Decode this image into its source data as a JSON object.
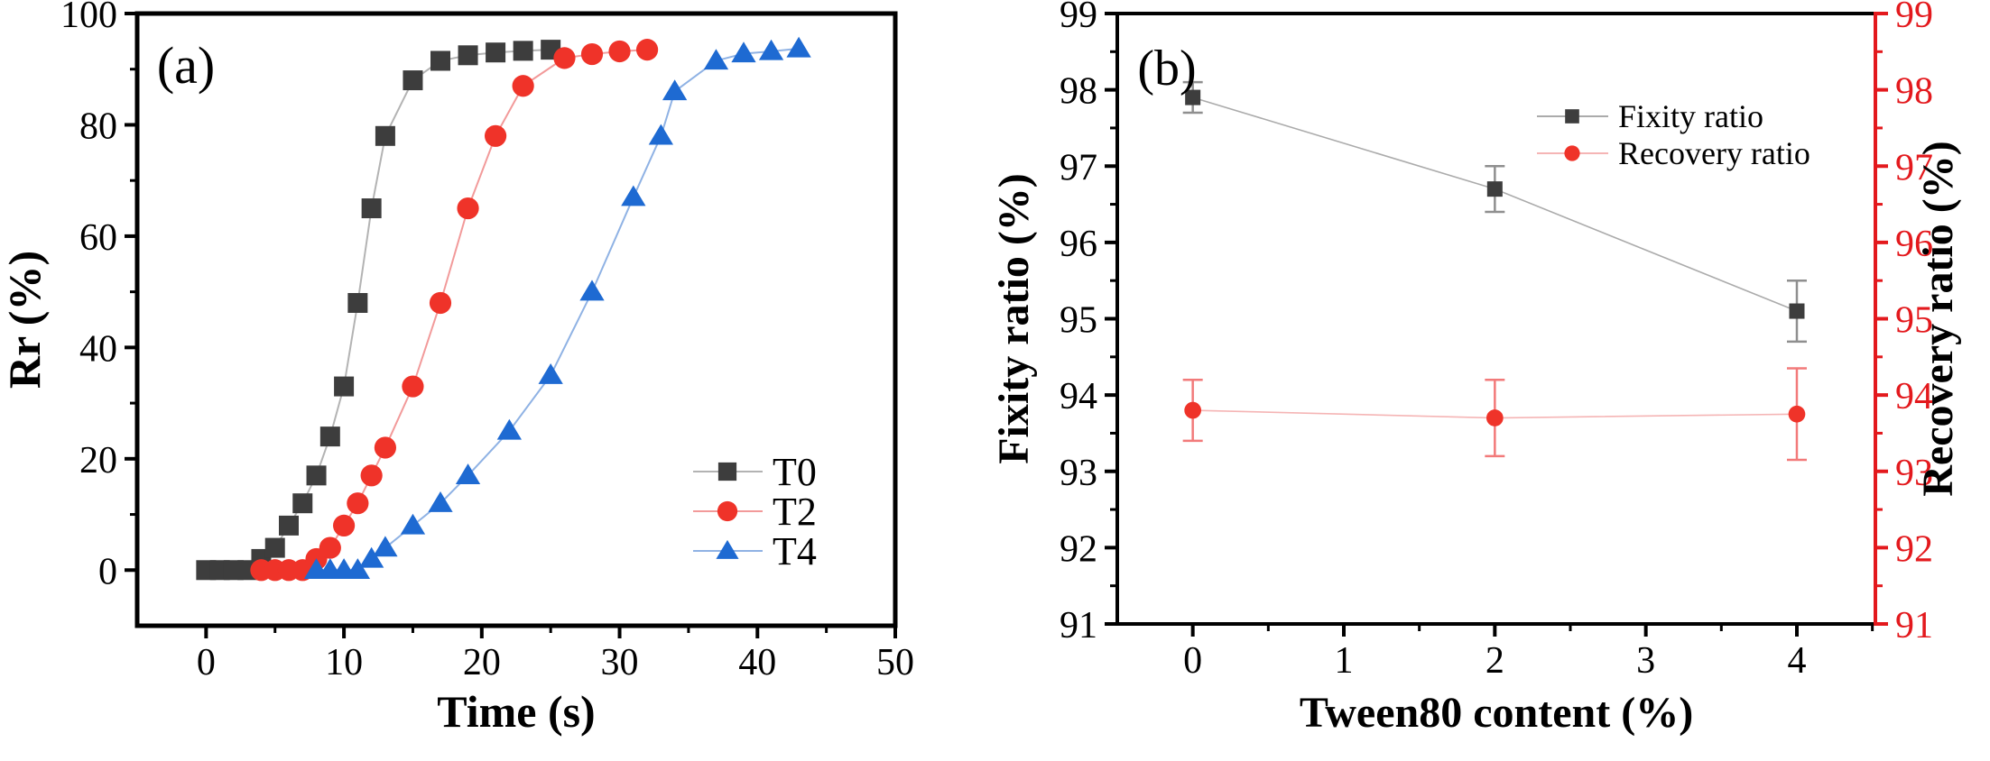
{
  "figure": {
    "background": "#ffffff",
    "panels": [
      "(a)",
      "(b)"
    ]
  },
  "chart_data": [
    {
      "id": "panel-a",
      "type": "line",
      "panel_label": "(a)",
      "xlabel": "Time (s)",
      "ylabel": "Rr (%)",
      "xlim": [
        -5,
        50
      ],
      "ylim": [
        -10,
        100
      ],
      "x_major_ticks": [
        0,
        10,
        20,
        30,
        40,
        50
      ],
      "x_minor_ticks": [
        5,
        15,
        25,
        35,
        45
      ],
      "y_major_ticks": [
        0,
        20,
        40,
        60,
        80,
        100
      ],
      "y_minor_ticks": [
        10,
        30,
        50,
        70,
        90
      ],
      "grid": false,
      "legend_position": "inside lower-right",
      "series": [
        {
          "name": "T0",
          "marker": "square",
          "color": "#3d3d3d",
          "line_color": "#b3b3b3",
          "x": [
            0,
            1,
            2,
            3,
            4,
            5,
            6,
            7,
            8,
            9,
            10,
            11,
            12,
            13,
            15,
            17,
            19,
            21,
            23,
            25
          ],
          "y": [
            0,
            0,
            0,
            0,
            2,
            4,
            8,
            12,
            17,
            24,
            33,
            48,
            65,
            78,
            88,
            91.5,
            92.5,
            93,
            93.3,
            93.5
          ]
        },
        {
          "name": "T2",
          "marker": "circle",
          "color": "#ef3329",
          "line_color": "#f29a9a",
          "x": [
            4,
            5,
            6,
            7,
            8,
            9,
            10,
            11,
            12,
            13,
            15,
            17,
            19,
            21,
            23,
            26,
            28,
            30,
            32
          ],
          "y": [
            0,
            0,
            0,
            0,
            2,
            4,
            8,
            12,
            17,
            22,
            33,
            48,
            65,
            78,
            87,
            92,
            92.7,
            93.2,
            93.5
          ]
        },
        {
          "name": "T4",
          "marker": "triangle",
          "color": "#1e6ad2",
          "line_color": "#8fb2e4",
          "x": [
            8,
            9,
            10,
            11,
            12,
            13,
            15,
            17,
            19,
            22,
            25,
            28,
            31,
            33,
            34,
            37,
            39,
            41,
            43
          ],
          "y": [
            0,
            0,
            0,
            0,
            2,
            4,
            8,
            12,
            17,
            25,
            35,
            50,
            67,
            78,
            86,
            91.5,
            92.8,
            93.2,
            93.7
          ]
        }
      ]
    },
    {
      "id": "panel-b",
      "type": "line",
      "panel_label": "(b)",
      "xlabel": "Tween80 content (%)",
      "ylabel_left": "Fixity ratio (%)",
      "ylabel_right": "Recovery ratio (%)",
      "right_axis_color": "#e3191d",
      "xlim": [
        -0.5,
        4.52
      ],
      "ylim": [
        91,
        99
      ],
      "xlim_right_same": true,
      "ylim_right": [
        91,
        99
      ],
      "x_major_ticks": [
        0,
        1,
        2,
        3,
        4
      ],
      "x_minor_ticks": [
        0.5,
        1.5,
        2.5,
        3.5,
        4.5
      ],
      "y_major_ticks": [
        91,
        92,
        93,
        94,
        95,
        96,
        97,
        98,
        99
      ],
      "y_minor_ticks": [
        91.5,
        92.5,
        93.5,
        94.5,
        95.5,
        96.5,
        97.5,
        98.5
      ],
      "grid": false,
      "legend_position": "inside upper-right",
      "series": [
        {
          "name": "Fixity ratio",
          "axis": "left",
          "marker": "square",
          "color": "#3d3d3d",
          "line_color": "#ababab",
          "error_color": "#8f8f8f",
          "x": [
            0,
            2,
            4
          ],
          "y": [
            97.9,
            96.7,
            95.1
          ],
          "yerr": [
            0.2,
            0.3,
            0.4
          ]
        },
        {
          "name": "Recovery ratio",
          "axis": "right",
          "marker": "circle",
          "color": "#ef3329",
          "line_color": "#f5b5b5",
          "error_color": "#f27a7a",
          "x": [
            0,
            2,
            4
          ],
          "y": [
            93.8,
            93.7,
            93.75
          ],
          "yerr": [
            0.4,
            0.5,
            0.6
          ]
        }
      ]
    }
  ]
}
